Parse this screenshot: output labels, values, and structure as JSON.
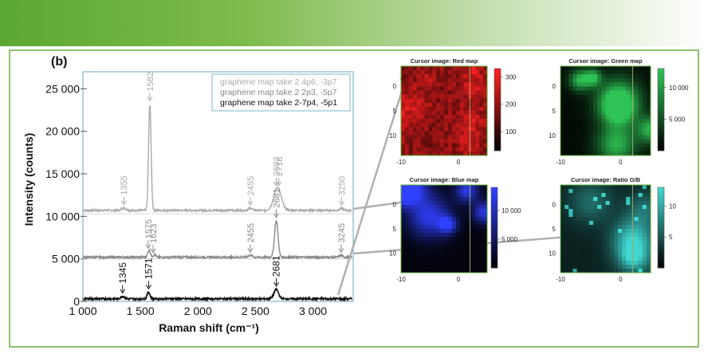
{
  "panel_label": "(b)",
  "chart_data": [
    {
      "type": "line",
      "xlabel": "Raman shift (cm⁻¹)",
      "ylabel": "Intensity (counts)",
      "xlim": [
        1000,
        3350
      ],
      "ylim": [
        0,
        27000
      ],
      "xticks": [
        1000,
        1500,
        2000,
        2500,
        3000
      ],
      "xtick_labels": [
        "1 000",
        "1 500",
        "2 000",
        "2 500",
        "3 000"
      ],
      "yticks": [
        0,
        5000,
        10000,
        15000,
        20000,
        25000
      ],
      "ytick_labels": [
        "0",
        "5 000",
        "10 000",
        "15 000",
        "20 000",
        "25 000"
      ],
      "grid": false,
      "legend_position": "top-right",
      "series": [
        {
          "name": "graphene map take 2 4p6, -3p7",
          "color": "#aaaaaa",
          "baseline": 10700,
          "peaks": [
            {
              "x": 1355,
              "height": 300,
              "width": 18
            },
            {
              "x": 1582,
              "height": 12500,
              "width": 11
            },
            {
              "x": 2455,
              "height": 250,
              "width": 18
            },
            {
              "x": 2692,
              "height": 2700,
              "width": 32
            },
            {
              "x": 3250,
              "height": 250,
              "width": 14
            }
          ],
          "peak_labels": [
            {
              "text": "1355",
              "x": 1355
            },
            {
              "text": "1582",
              "x": 1582
            },
            {
              "text": "2455",
              "x": 2455
            },
            {
              "text": "2692",
              "x": 2680
            },
            {
              "text": "2718",
              "x": 2704
            },
            {
              "text": "3250",
              "x": 3250
            }
          ]
        },
        {
          "name": "graphene map take 2 2p3, -5p7",
          "color": "#888888",
          "baseline": 5200,
          "peaks": [
            {
              "x": 1575,
              "height": 800,
              "width": 12
            },
            {
              "x": 1623,
              "height": 300,
              "width": 10
            },
            {
              "x": 2455,
              "height": 200,
              "width": 18
            },
            {
              "x": 2681,
              "height": 4300,
              "width": 15
            },
            {
              "x": 3245,
              "height": 200,
              "width": 14
            }
          ],
          "peak_labels": [
            {
              "text": "1575",
              "x": 1568
            },
            {
              "text": "1623",
              "x": 1610
            },
            {
              "text": "2455",
              "x": 2455
            },
            {
              "text": "2681",
              "x": 2681
            },
            {
              "text": "3245",
              "x": 3245
            }
          ]
        },
        {
          "name": "graphene map take 2-7p4, -5p1",
          "color": "#111111",
          "baseline": 300,
          "peaks": [
            {
              "x": 1345,
              "height": 300,
              "width": 15
            },
            {
              "x": 1571,
              "height": 800,
              "width": 12
            },
            {
              "x": 2681,
              "height": 1100,
              "width": 20
            }
          ],
          "peak_labels": [
            {
              "text": "1345",
              "x": 1345
            },
            {
              "text": "1571",
              "x": 1571
            },
            {
              "text": "2681",
              "x": 2681
            }
          ]
        }
      ]
    },
    {
      "type": "heatmap",
      "title": "Cursor image: Red map",
      "colormap": [
        "#000000",
        "#ff2020"
      ],
      "colorbar_ticks": [
        {
          "value": 100,
          "label": "100"
        },
        {
          "value": 200,
          "label": "200"
        },
        {
          "value": 300,
          "label": "300"
        }
      ],
      "colorbar_range": [
        30,
        330
      ],
      "colorbar_side": "right",
      "xticks": [
        {
          "value": -10,
          "label": "-10"
        },
        {
          "value": 0,
          "label": "0"
        }
      ],
      "yticks": [
        {
          "value": 0,
          "label": "0"
        },
        {
          "value": 5,
          "label": "5"
        },
        {
          "value": 10,
          "label": "10"
        }
      ],
      "xlim": [
        -10,
        5
      ],
      "ylim": [
        -4,
        14
      ],
      "cursor_x": 2
    },
    {
      "type": "heatmap",
      "title": "Cursor image: Green map",
      "colormap": [
        "#000000",
        "#2ec455"
      ],
      "colorbar_ticks": [
        {
          "value": 5000,
          "label": "5 000"
        },
        {
          "value": 10000,
          "label": "10 000"
        }
      ],
      "colorbar_range": [
        0,
        13000
      ],
      "colorbar_side": "right",
      "xticks": [
        {
          "value": -10,
          "label": "-10"
        },
        {
          "value": 0,
          "label": "0"
        }
      ],
      "yticks": [
        {
          "value": 0,
          "label": "0"
        },
        {
          "value": 5,
          "label": "5"
        },
        {
          "value": 10,
          "label": "10"
        }
      ],
      "xlim": [
        -10,
        5
      ],
      "ylim": [
        -4,
        14
      ],
      "cursor_x": 2
    },
    {
      "type": "heatmap",
      "title": "Cursor image: Blue map",
      "colormap": [
        "#000000",
        "#3040ff"
      ],
      "colorbar_ticks": [
        {
          "value": 5000,
          "label": "5 000"
        },
        {
          "value": 10000,
          "label": "10 000"
        }
      ],
      "colorbar_range": [
        0,
        14000
      ],
      "colorbar_side": "left",
      "xticks": [
        {
          "value": -10,
          "label": "-10"
        },
        {
          "value": 0,
          "label": "0"
        }
      ],
      "yticks": [
        {
          "value": 0,
          "label": "0"
        },
        {
          "value": 5,
          "label": "5"
        },
        {
          "value": 10,
          "label": "10"
        }
      ],
      "xlim": [
        -10,
        5
      ],
      "ylim": [
        -4,
        14
      ],
      "cursor_x": 2
    },
    {
      "type": "heatmap",
      "title": "Cursor image: Ratio G/B",
      "colormap": [
        "#000000",
        "#40d8d0"
      ],
      "colorbar_ticks": [
        {
          "value": 5,
          "label": "5"
        },
        {
          "value": 10,
          "label": "10"
        }
      ],
      "colorbar_range": [
        0,
        13
      ],
      "colorbar_side": "right",
      "xticks": [
        {
          "value": -10,
          "label": "-10"
        },
        {
          "value": 0,
          "label": "0"
        }
      ],
      "yticks": [
        {
          "value": 0,
          "label": "0"
        },
        {
          "value": 5,
          "label": "5"
        },
        {
          "value": 10,
          "label": "10"
        }
      ],
      "xlim": [
        -10,
        5
      ],
      "ylim": [
        -4,
        14
      ],
      "cursor_x": 2
    }
  ],
  "colors": {
    "banner_start": "#5aa832",
    "frame": "#8cc26b",
    "connector": "#b0b0b0",
    "map_border": "#5aa832"
  }
}
